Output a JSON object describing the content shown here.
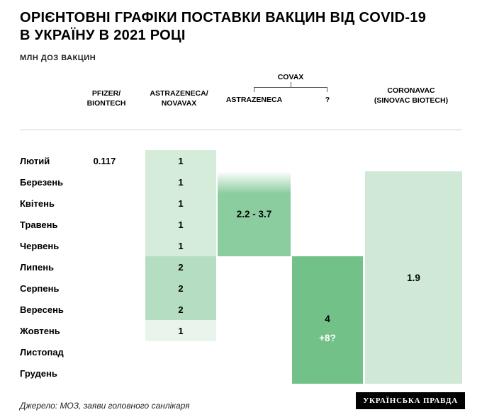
{
  "header": {
    "title_line1": "ОРІЄНТОВНІ ГРАФІКИ ПОСТАВКИ ВАКЦИН ВІД COVID-19",
    "title_line2": "В УКРАЇНУ В 2021 РОЦІ",
    "subtitle": "МЛН ДОЗ ВАКЦИН"
  },
  "column_headers": {
    "pfizer_line1": "PFIZER/",
    "pfizer_line2": "BIONTECH",
    "astrazeneca_line1": "ASTRAZENECA/",
    "astrazeneca_line2": "NOVAVAX",
    "covax_group": "COVAX",
    "covax_sub_astrazeneca": "ASTRAZENECA",
    "covax_sub_unknown": "?",
    "coronavac_line1": "CORONAVAC",
    "coronavac_line2": "(SINOVAC BIOTECH)"
  },
  "chart_data": {
    "type": "table",
    "title": "Орієнтовні графіки поставки вакцин від COVID-19 в Україну в 2021 році",
    "unit": "млн доз вакцин",
    "months": [
      "Лютий",
      "Березень",
      "Квітень",
      "Травень",
      "Червень",
      "Липень",
      "Серпень",
      "Вересень",
      "Жовтень",
      "Листопад",
      "Грудень"
    ],
    "series": [
      {
        "name": "Pfizer/BioNTech",
        "cells": [
          {
            "month": "Лютий",
            "value": "0.117"
          }
        ]
      },
      {
        "name": "AstraZeneca/Novavax",
        "cells": [
          {
            "month": "Лютий",
            "value": "1",
            "shade": "light"
          },
          {
            "month": "Березень",
            "value": "1",
            "shade": "light"
          },
          {
            "month": "Квітень",
            "value": "1",
            "shade": "light"
          },
          {
            "month": "Травень",
            "value": "1",
            "shade": "light"
          },
          {
            "month": "Червень",
            "value": "1",
            "shade": "light"
          },
          {
            "month": "Липень",
            "value": "2",
            "shade": "medium"
          },
          {
            "month": "Серпень",
            "value": "2",
            "shade": "medium"
          },
          {
            "month": "Вересень",
            "value": "2",
            "shade": "medium"
          },
          {
            "month": "Жовтень",
            "value": "1",
            "shade": "lightest"
          }
        ]
      },
      {
        "name": "COVAX / AstraZeneca",
        "block": {
          "from": "Березень",
          "to": "Червень",
          "label": "2.2 - 3.7",
          "gradient_top": true
        }
      },
      {
        "name": "COVAX / ?",
        "block": {
          "from": "Липень",
          "to": "Грудень",
          "labels": [
            "4",
            "+8?"
          ]
        }
      },
      {
        "name": "CoronaVac (Sinovac Biotech)",
        "block": {
          "from": "Березень",
          "to": "Грудень",
          "label": "1.9"
        }
      }
    ]
  },
  "colors": {
    "cell_light": "#d5ecda",
    "cell_medium": "#b5ddc2",
    "cell_lightest": "#e9f5ec",
    "covax_az_block": "#8ccd9f",
    "covax_q_block": "#72c189",
    "coronavac_block": "#cfe9d6"
  },
  "footer": {
    "source": "Джерело: МОЗ, заяви головного санлікаря",
    "logo": "УКРАЇНСЬКА ПРАВДА"
  }
}
